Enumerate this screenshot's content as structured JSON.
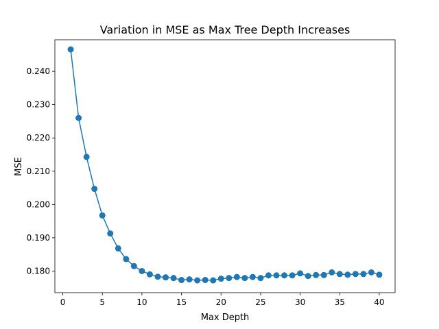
{
  "chart_data": {
    "type": "line",
    "title": "Variation in MSE as Max Tree Depth Increases",
    "xlabel": "Max Depth",
    "ylabel": "MSE",
    "xlim": [
      -1,
      42
    ],
    "ylim": [
      0.1735,
      0.2495
    ],
    "xticks": [
      0,
      5,
      10,
      15,
      20,
      25,
      30,
      35,
      40
    ],
    "yticks": [
      0.18,
      0.19,
      0.2,
      0.21,
      0.22,
      0.23,
      0.24
    ],
    "ytick_labels": [
      "0.180",
      "0.190",
      "0.200",
      "0.210",
      "0.220",
      "0.230",
      "0.240"
    ],
    "grid": false,
    "series": [
      {
        "color": "#1f77b4",
        "marker": "circle",
        "x": [
          1,
          2,
          3,
          4,
          5,
          6,
          7,
          8,
          9,
          10,
          11,
          12,
          13,
          14,
          15,
          16,
          17,
          18,
          19,
          20,
          21,
          22,
          23,
          24,
          25,
          26,
          27,
          28,
          29,
          30,
          31,
          32,
          33,
          34,
          35,
          36,
          37,
          38,
          39,
          40
        ],
        "y": [
          0.2466,
          0.226,
          0.2143,
          0.2047,
          0.1967,
          0.1913,
          0.1868,
          0.1836,
          0.1815,
          0.18,
          0.179,
          0.1783,
          0.1781,
          0.1779,
          0.1773,
          0.1775,
          0.1772,
          0.1773,
          0.1772,
          0.1777,
          0.1779,
          0.1782,
          0.1779,
          0.1782,
          0.1779,
          0.1787,
          0.1787,
          0.1787,
          0.1787,
          0.1793,
          0.1785,
          0.1788,
          0.1788,
          0.1796,
          0.1791,
          0.1789,
          0.1791,
          0.1791,
          0.1796,
          0.1789
        ]
      }
    ]
  }
}
